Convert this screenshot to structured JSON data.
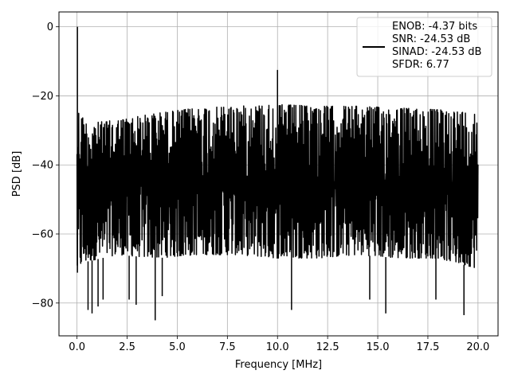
{
  "chart_data": {
    "type": "line",
    "title": "",
    "xlabel": "Frequency [MHz]",
    "ylabel": "PSD [dB]",
    "xlim": [
      -0.9,
      21.0
    ],
    "ylim": [
      -89.5,
      4.3
    ],
    "xticks": [
      0.0,
      2.5,
      5.0,
      7.5,
      10.0,
      12.5,
      15.0,
      17.5,
      20.0
    ],
    "xtick_labels": [
      "0.0",
      "2.5",
      "5.0",
      "7.5",
      "10.0",
      "12.5",
      "15.0",
      "17.5",
      "20.0"
    ],
    "yticks": [
      0,
      -20,
      -40,
      -60,
      -80
    ],
    "ytick_labels": [
      "0",
      "−20",
      "−40",
      "−60",
      "−80"
    ],
    "grid": true,
    "legend_position": "top-right",
    "series": [
      {
        "name": "ENOB: -4.37 bits\nSNR: -24.53 dB\nSINAD: -24.53 dB\nSFDR: 6.77",
        "color": "#000000",
        "envelope": {
          "x": [
            0.0,
            0.05,
            0.5,
            2.0,
            4.0,
            6.0,
            8.0,
            10.0,
            12.0,
            14.0,
            16.0,
            18.0,
            20.0
          ],
          "upper": [
            -26,
            -24,
            -28,
            -27,
            -25,
            -23.5,
            -23,
            -22.5,
            -23,
            -23,
            -23.5,
            -24,
            -25
          ],
          "lower": [
            -72,
            -70,
            -68,
            -66,
            -67,
            -66,
            -66,
            -67,
            -67,
            -66,
            -67,
            -67,
            -70
          ]
        },
        "peaks": [
          {
            "x": 0.02,
            "y": 0
          },
          {
            "x": 10.0,
            "y": -12.5
          }
        ],
        "dips": [
          {
            "x": 0.55,
            "y": -82
          },
          {
            "x": 0.75,
            "y": -83
          },
          {
            "x": 1.05,
            "y": -81
          },
          {
            "x": 1.3,
            "y": -79
          },
          {
            "x": 2.6,
            "y": -79
          },
          {
            "x": 2.95,
            "y": -80.5
          },
          {
            "x": 3.9,
            "y": -85
          },
          {
            "x": 4.25,
            "y": -78
          },
          {
            "x": 10.7,
            "y": -82
          },
          {
            "x": 14.6,
            "y": -79
          },
          {
            "x": 15.4,
            "y": -83
          },
          {
            "x": 17.9,
            "y": -79
          },
          {
            "x": 19.3,
            "y": -83.5
          }
        ]
      }
    ]
  }
}
